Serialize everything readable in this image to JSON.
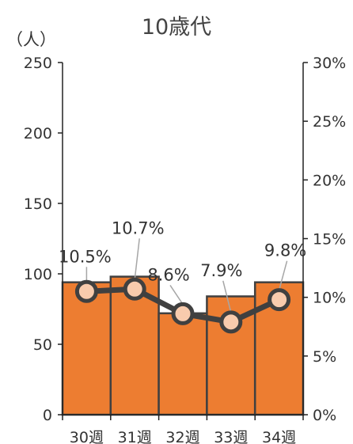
{
  "chart_data": {
    "type": "bar",
    "title": "10歳代",
    "y_unit_label": "（人）",
    "categories": [
      "30週",
      "31週",
      "32週",
      "33週",
      "34週"
    ],
    "series": [
      {
        "type": "bar",
        "values": [
          94,
          98,
          72,
          84,
          94
        ]
      },
      {
        "type": "line",
        "axis": "right",
        "values": [
          10.5,
          10.7,
          8.6,
          7.9,
          9.8
        ],
        "labels": [
          "10.5%",
          "10.7%",
          "8.6%",
          "7.9%",
          "9.8%"
        ]
      }
    ],
    "ylim": [
      0,
      250
    ],
    "y_ticks": [
      0,
      50,
      100,
      150,
      200,
      250
    ],
    "y2lim": [
      0,
      30
    ],
    "y2_ticks": [
      "0%",
      "5%",
      "10%",
      "15%",
      "20%",
      "25%",
      "30%"
    ],
    "grid": false,
    "colors": {
      "bar": "#ED7D31",
      "bar_edge": "#404040",
      "line": "#404040",
      "marker_fill": "#F8CBAD",
      "leader": "#A6A6A6"
    }
  }
}
